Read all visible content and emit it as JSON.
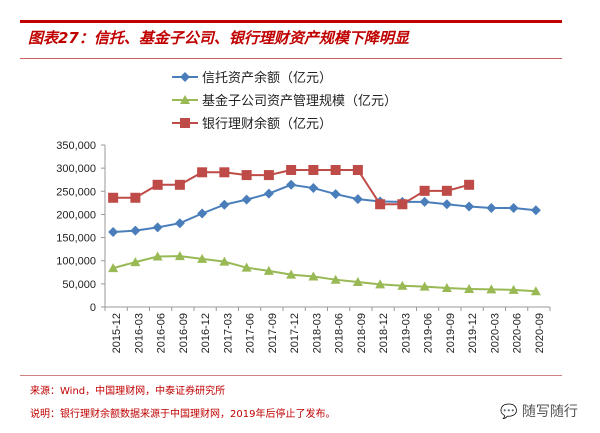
{
  "header": {
    "title": "图表27：信托、基金子公司、银行理财资产规模下降明显"
  },
  "footer": {
    "source": "来源：Wind，中国理财网，中泰证券研究所",
    "note": "说明：银行理财余额数据来源于中国理财网，2019年后停止了发布。",
    "watermark": "随写随行"
  },
  "chart_data": {
    "type": "line",
    "categories": [
      "2015-12",
      "2016-03",
      "2016-06",
      "2016-09",
      "2016-12",
      "2017-03",
      "2017-06",
      "2017-09",
      "2017-12",
      "2018-03",
      "2018-06",
      "2018-09",
      "2018-12",
      "2019-03",
      "2019-06",
      "2019-09",
      "2019-12",
      "2020-03",
      "2020-06",
      "2020-09"
    ],
    "ylim": [
      0,
      350000
    ],
    "yticks": [
      0,
      50000,
      100000,
      150000,
      200000,
      250000,
      300000,
      350000
    ],
    "ytick_labels": [
      "0",
      "50,000",
      "100,000",
      "150,000",
      "200,000",
      "250,000",
      "300,000",
      "350,000"
    ],
    "grid": false,
    "legend_position": "top",
    "series": [
      {
        "name": "信托资产余额（亿元）",
        "color": "#4a7ebb",
        "marker": "diamond",
        "values": [
          162000,
          165000,
          172000,
          181000,
          202000,
          221000,
          232000,
          245000,
          264000,
          257000,
          244000,
          233000,
          228000,
          227000,
          227000,
          222000,
          217000,
          214000,
          214000,
          209000
        ]
      },
      {
        "name": "基金子公司资产管理规模（亿元）",
        "color": "#98b954",
        "marker": "triangle",
        "values": [
          84000,
          97000,
          109000,
          110000,
          104000,
          98000,
          85000,
          78000,
          70000,
          66000,
          59000,
          54000,
          49000,
          46000,
          44000,
          41000,
          39000,
          38000,
          37000,
          34000
        ]
      },
      {
        "name": "银行理财余额（亿元）",
        "color": "#be4b48",
        "marker": "square",
        "values": [
          236000,
          236000,
          264000,
          264000,
          291000,
          291000,
          285000,
          285000,
          296000,
          296000,
          296000,
          296000,
          222000,
          222000,
          251000,
          251000,
          264000,
          null,
          null,
          null
        ]
      }
    ]
  }
}
